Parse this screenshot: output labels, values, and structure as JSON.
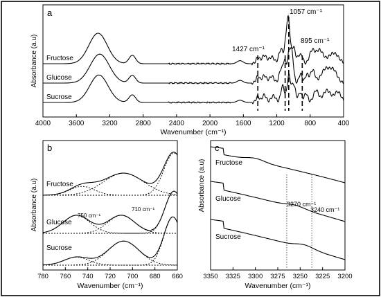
{
  "chart_data": [
    {
      "type": "line",
      "panel_label": "a",
      "xlabel": "Wavenumber (cm⁻¹)",
      "ylabel": "Absorbance (a.u)",
      "xlim": [
        4000,
        400
      ],
      "x_reversed": true,
      "x_ticks": [
        "4000",
        "3600",
        "3200",
        "2800",
        "2400",
        "2000",
        "1600",
        "1200",
        "800",
        "400"
      ],
      "y_ticks_shown": false,
      "series": [
        {
          "name": "Fructose",
          "offset": 2,
          "peaks": [
            [
              3340,
              2.0,
              110
            ],
            [
              2930,
              0.55,
              40
            ],
            [
              1640,
              0.2,
              35
            ],
            [
              1427,
              0.4,
              22
            ],
            [
              1350,
              0.55,
              28
            ],
            [
              1260,
              0.45,
              30
            ],
            [
              1150,
              0.95,
              25
            ],
            [
              1085,
              1.6,
              20
            ],
            [
              1057,
              2.3,
              18
            ],
            [
              1000,
              1.1,
              22
            ],
            [
              930,
              0.55,
              22
            ],
            [
              895,
              0.35,
              15
            ],
            [
              780,
              0.8,
              30
            ],
            [
              690,
              0.9,
              45
            ],
            [
              520,
              0.7,
              60
            ]
          ]
        },
        {
          "name": "Glucose",
          "offset": 1,
          "peaks": [
            [
              3320,
              1.9,
              115
            ],
            [
              2930,
              0.5,
              40
            ],
            [
              1640,
              0.18,
              35
            ],
            [
              1427,
              0.45,
              22
            ],
            [
              1350,
              0.5,
              26
            ],
            [
              1260,
              0.45,
              28
            ],
            [
              1150,
              0.9,
              22
            ],
            [
              1105,
              1.4,
              18
            ],
            [
              1057,
              1.7,
              18
            ],
            [
              1020,
              2.0,
              20
            ],
            [
              915,
              0.6,
              20
            ],
            [
              840,
              0.55,
              20
            ],
            [
              770,
              0.85,
              28
            ],
            [
              620,
              0.9,
              50
            ],
            [
              520,
              0.8,
              45
            ]
          ]
        },
        {
          "name": "Sucrose",
          "offset": 0,
          "peaks": [
            [
              3330,
              1.8,
              110
            ],
            [
              2930,
              0.5,
              40
            ],
            [
              1640,
              0.15,
              35
            ],
            [
              1427,
              0.4,
              20
            ],
            [
              1350,
              0.5,
              25
            ],
            [
              1240,
              0.45,
              28
            ],
            [
              1130,
              1.1,
              22
            ],
            [
              1057,
              1.7,
              20
            ],
            [
              1000,
              1.2,
              25
            ],
            [
              920,
              0.65,
              20
            ],
            [
              850,
              0.6,
              22
            ],
            [
              730,
              0.8,
              30
            ],
            [
              600,
              0.8,
              45
            ],
            [
              470,
              0.7,
              40
            ]
          ]
        }
      ],
      "markers": [
        {
          "x": 1427,
          "label": "1427 cm⁻¹"
        },
        {
          "x": 1057,
          "label": "1057 cm⁻¹"
        },
        {
          "x": 895,
          "label": "895 cm⁻¹"
        },
        {
          "x": 1100,
          "label": ""
        }
      ]
    },
    {
      "type": "line",
      "panel_label": "b",
      "xlabel": "Wavenumber (cm⁻¹)",
      "ylabel": "Absorbance (a.u)",
      "xlim": [
        780,
        660
      ],
      "x_reversed": true,
      "x_ticks": [
        "780",
        "760",
        "740",
        "720",
        "700",
        "680",
        "660"
      ],
      "y_ticks_shown": false,
      "series": [
        {
          "name": "Fructose",
          "offset": 2,
          "components": [
            [
              745,
              0.22,
              11
            ],
            [
              708,
              0.55,
              18
            ],
            [
              663,
              1.05,
              9
            ]
          ]
        },
        {
          "name": "Glucose",
          "offset": 1,
          "components": [
            [
              750,
              0.45,
              12
            ],
            [
              710,
              0.45,
              12
            ],
            [
              663,
              1.05,
              8
            ]
          ]
        },
        {
          "name": "Sucrose",
          "offset": 0,
          "components": [
            [
              750,
              0.2,
              11
            ],
            [
              708,
              0.6,
              14
            ],
            [
              664,
              1.2,
              8
            ]
          ]
        }
      ],
      "annotations": [
        {
          "x": 750,
          "label": "750 cm⁻¹"
        },
        {
          "x": 710,
          "label": "710 cm⁻¹"
        }
      ]
    },
    {
      "type": "line",
      "panel_label": "c",
      "xlabel": "Wavenumber (cm⁻¹)",
      "ylabel": "Absorbance (a.u)",
      "xlim": [
        3350,
        3200
      ],
      "x_reversed": true,
      "x_ticks": [
        "3350",
        "3325",
        "3300",
        "3275",
        "3250",
        "3225",
        "3200"
      ],
      "y_ticks_shown": false,
      "series": [
        {
          "name": "Fructose",
          "offset": 2,
          "start": 1.0,
          "end": 0.0,
          "bump_at": 3300,
          "bump": 0.08
        },
        {
          "name": "Glucose",
          "offset": 1,
          "start": 1.0,
          "end": 0.0,
          "bump_at": 3255,
          "bump": 0.06
        },
        {
          "name": "Sucrose",
          "offset": 0,
          "start": 1.0,
          "end": 0.0,
          "bump_at": 3245,
          "bump": 0.08
        }
      ],
      "markers": [
        {
          "x": 3265,
          "label": "3270 cm⁻¹"
        },
        {
          "x": 3237,
          "label": "3240 cm⁻¹"
        }
      ]
    }
  ]
}
